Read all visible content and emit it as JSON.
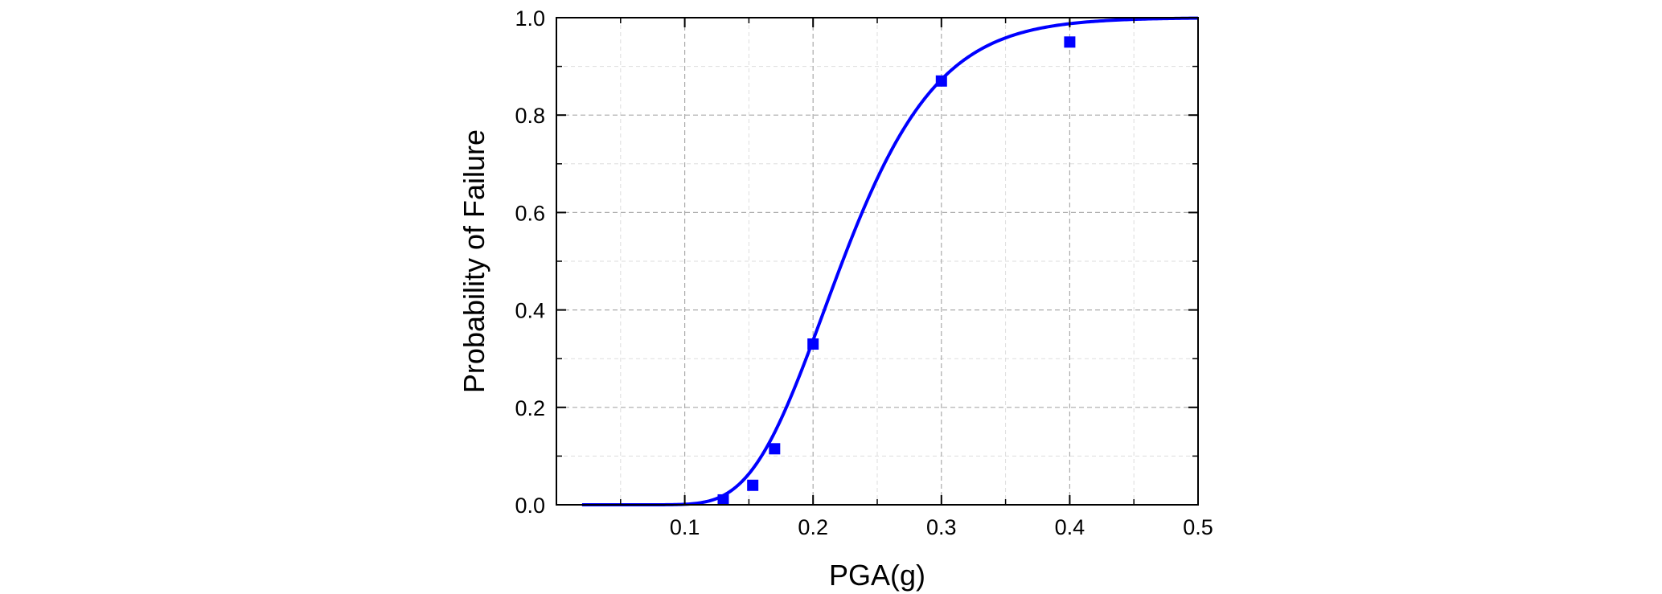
{
  "chart_data": {
    "type": "scatter",
    "title": "",
    "xlabel": "PGA(g)",
    "ylabel": "Probability of Failure",
    "xlim": [
      0.0,
      0.5
    ],
    "ylim": [
      0.0,
      1.0
    ],
    "x_ticks": [
      0.1,
      0.2,
      0.3,
      0.4,
      0.5
    ],
    "x_tick_labels": [
      "0.1",
      "0.2",
      "0.3",
      "0.4",
      "0.5"
    ],
    "y_ticks": [
      0.0,
      0.2,
      0.4,
      0.6,
      0.8,
      1.0
    ],
    "y_tick_labels": [
      "0.0",
      "0.2",
      "0.4",
      "0.6",
      "0.8",
      "1.0"
    ],
    "grid": true,
    "minor_grid": true,
    "legend": "none",
    "color": "#0000ff",
    "series": [
      {
        "kind": "points",
        "marker": "square",
        "x": [
          0.13,
          0.153,
          0.17,
          0.2,
          0.3,
          0.4
        ],
        "y": [
          0.01,
          0.04,
          0.115,
          0.33,
          0.87,
          0.95
        ]
      },
      {
        "kind": "curve",
        "style": "solid",
        "model": "lognormal-cdf",
        "median": 0.223,
        "beta": 0.26,
        "x_range": [
          0.02,
          0.5
        ]
      }
    ]
  }
}
